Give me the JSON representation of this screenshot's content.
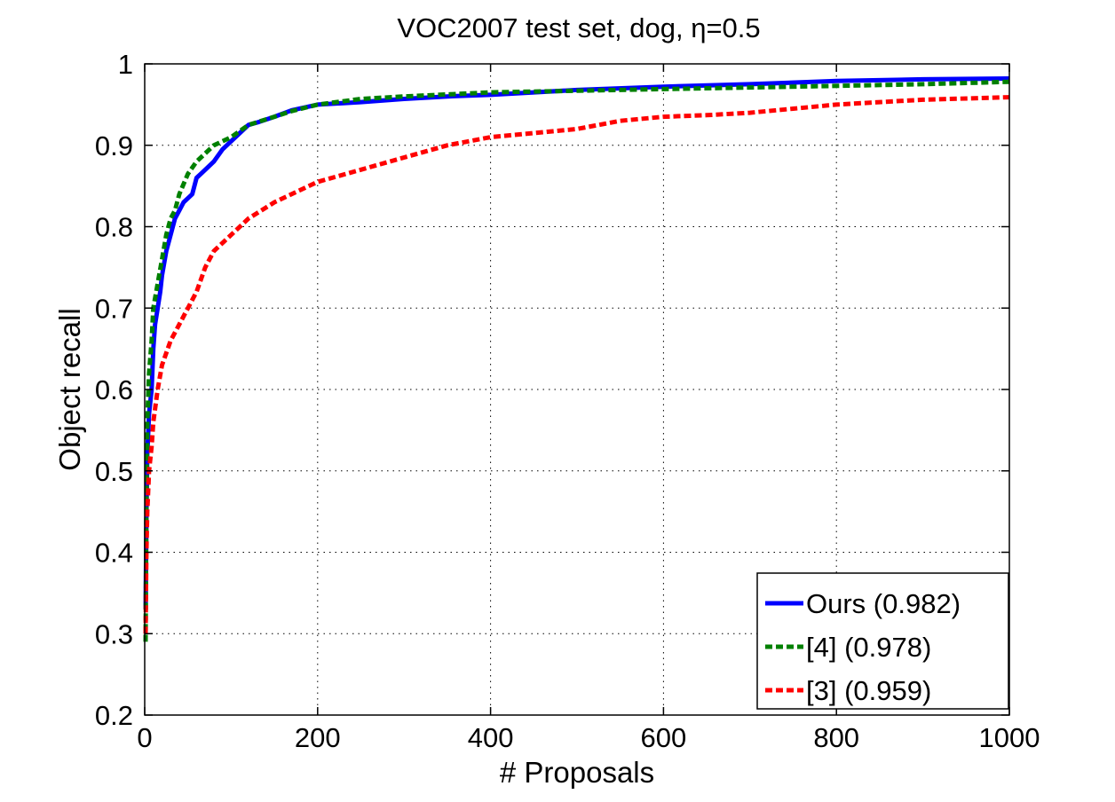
{
  "chart_data": {
    "type": "line",
    "title": "VOC2007 test set, dog, η=0.5",
    "xlabel": "# Proposals",
    "ylabel": "Object recall",
    "xlim": [
      0,
      1000
    ],
    "ylim": [
      0.2,
      1
    ],
    "xticks": [
      0,
      200,
      400,
      600,
      800,
      1000
    ],
    "xtick_labels": [
      "0",
      "200",
      "400",
      "600",
      "800",
      "1000"
    ],
    "yticks": [
      0.2,
      0.3,
      0.4,
      0.5,
      0.6,
      0.7,
      0.8,
      0.9,
      1
    ],
    "ytick_labels": [
      "0.2",
      "0.3",
      "0.4",
      "0.5",
      "0.6",
      "0.7",
      "0.8",
      "0.9",
      "1"
    ],
    "grid": true,
    "legend_position": "bottom-right",
    "series": [
      {
        "name": "Ours (0.982)",
        "color": "#0000ff",
        "style": "solid",
        "points": [
          [
            1,
            0.33
          ],
          [
            2,
            0.44
          ],
          [
            3,
            0.52
          ],
          [
            5,
            0.57
          ],
          [
            8,
            0.6
          ],
          [
            10,
            0.65
          ],
          [
            12,
            0.68
          ],
          [
            15,
            0.7
          ],
          [
            18,
            0.72
          ],
          [
            20,
            0.74
          ],
          [
            25,
            0.77
          ],
          [
            30,
            0.79
          ],
          [
            35,
            0.81
          ],
          [
            40,
            0.82
          ],
          [
            45,
            0.83
          ],
          [
            50,
            0.835
          ],
          [
            55,
            0.84
          ],
          [
            60,
            0.86
          ],
          [
            65,
            0.865
          ],
          [
            70,
            0.87
          ],
          [
            80,
            0.88
          ],
          [
            90,
            0.895
          ],
          [
            100,
            0.905
          ],
          [
            110,
            0.915
          ],
          [
            120,
            0.925
          ],
          [
            130,
            0.928
          ],
          [
            150,
            0.935
          ],
          [
            170,
            0.943
          ],
          [
            200,
            0.95
          ],
          [
            250,
            0.953
          ],
          [
            300,
            0.957
          ],
          [
            350,
            0.96
          ],
          [
            400,
            0.962
          ],
          [
            500,
            0.968
          ],
          [
            600,
            0.972
          ],
          [
            700,
            0.975
          ],
          [
            800,
            0.979
          ],
          [
            900,
            0.981
          ],
          [
            1000,
            0.982
          ]
        ]
      },
      {
        "name": "[4] (0.978)",
        "color": "#008000",
        "style": "dashed",
        "points": [
          [
            1,
            0.29
          ],
          [
            2,
            0.45
          ],
          [
            3,
            0.56
          ],
          [
            5,
            0.62
          ],
          [
            8,
            0.66
          ],
          [
            10,
            0.7
          ],
          [
            15,
            0.73
          ],
          [
            20,
            0.76
          ],
          [
            25,
            0.79
          ],
          [
            30,
            0.81
          ],
          [
            35,
            0.82
          ],
          [
            40,
            0.84
          ],
          [
            50,
            0.865
          ],
          [
            60,
            0.88
          ],
          [
            70,
            0.89
          ],
          [
            80,
            0.9
          ],
          [
            90,
            0.905
          ],
          [
            100,
            0.91
          ],
          [
            120,
            0.925
          ],
          [
            150,
            0.935
          ],
          [
            170,
            0.942
          ],
          [
            200,
            0.95
          ],
          [
            250,
            0.957
          ],
          [
            300,
            0.96
          ],
          [
            400,
            0.965
          ],
          [
            500,
            0.967
          ],
          [
            600,
            0.969
          ],
          [
            700,
            0.971
          ],
          [
            800,
            0.973
          ],
          [
            900,
            0.975
          ],
          [
            1000,
            0.978
          ]
        ]
      },
      {
        "name": "[3] (0.959)",
        "color": "#ff0000",
        "style": "dashed",
        "points": [
          [
            1,
            0.3
          ],
          [
            2,
            0.4
          ],
          [
            3,
            0.45
          ],
          [
            5,
            0.5
          ],
          [
            8,
            0.53
          ],
          [
            10,
            0.56
          ],
          [
            15,
            0.6
          ],
          [
            20,
            0.63
          ],
          [
            30,
            0.66
          ],
          [
            40,
            0.68
          ],
          [
            50,
            0.7
          ],
          [
            60,
            0.72
          ],
          [
            70,
            0.75
          ],
          [
            80,
            0.77
          ],
          [
            90,
            0.78
          ],
          [
            100,
            0.79
          ],
          [
            120,
            0.81
          ],
          [
            150,
            0.83
          ],
          [
            200,
            0.855
          ],
          [
            250,
            0.87
          ],
          [
            300,
            0.885
          ],
          [
            350,
            0.9
          ],
          [
            400,
            0.91
          ],
          [
            450,
            0.915
          ],
          [
            500,
            0.92
          ],
          [
            550,
            0.93
          ],
          [
            600,
            0.935
          ],
          [
            650,
            0.937
          ],
          [
            700,
            0.94
          ],
          [
            750,
            0.945
          ],
          [
            800,
            0.95
          ],
          [
            850,
            0.953
          ],
          [
            900,
            0.956
          ],
          [
            1000,
            0.959
          ]
        ]
      }
    ]
  }
}
